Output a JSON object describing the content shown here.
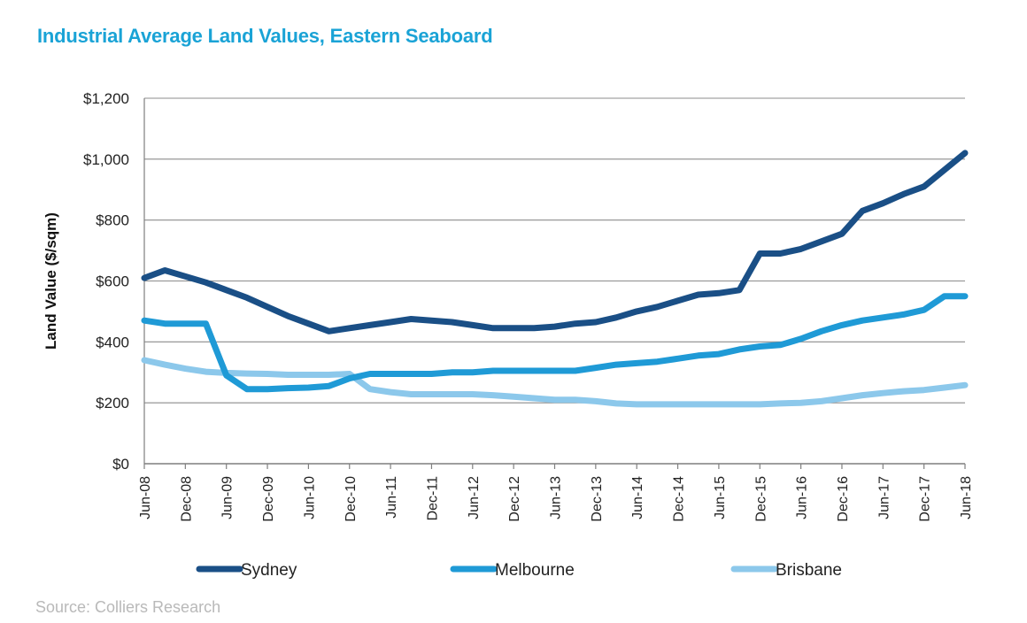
{
  "chart_data": {
    "type": "line",
    "title": "Industrial Average Land Values, Eastern Seaboard",
    "ylabel": "Land Value ($/sqm)",
    "xlabel": "",
    "ylim": [
      0,
      1200
    ],
    "yticks": [
      0,
      200,
      400,
      600,
      800,
      1000,
      1200
    ],
    "ytick_labels": [
      "$0",
      "$200",
      "$400",
      "$600",
      "$800",
      "$1,000",
      "$1,200"
    ],
    "xtick_labels": [
      "Jun-08",
      "Dec-08",
      "Jun-09",
      "Dec-09",
      "Jun-10",
      "Dec-10",
      "Jun-11",
      "Dec-11",
      "Jun-12",
      "Dec-12",
      "Jun-13",
      "Dec-13",
      "Jun-14",
      "Dec-14",
      "Jun-15",
      "Dec-15",
      "Jun-16",
      "Dec-16",
      "Jun-17",
      "Dec-17",
      "Jun-18"
    ],
    "x": [
      "Jun-08",
      "Sep-08",
      "Dec-08",
      "Mar-09",
      "Jun-09",
      "Sep-09",
      "Dec-09",
      "Mar-10",
      "Jun-10",
      "Sep-10",
      "Dec-10",
      "Mar-11",
      "Jun-11",
      "Sep-11",
      "Dec-11",
      "Mar-12",
      "Jun-12",
      "Sep-12",
      "Dec-12",
      "Mar-13",
      "Jun-13",
      "Sep-13",
      "Dec-13",
      "Mar-14",
      "Jun-14",
      "Sep-14",
      "Dec-14",
      "Mar-15",
      "Jun-15",
      "Sep-15",
      "Dec-15",
      "Mar-16",
      "Jun-16",
      "Sep-16",
      "Dec-16",
      "Mar-17",
      "Jun-17",
      "Sep-17",
      "Dec-17",
      "Mar-18",
      "Jun-18"
    ],
    "grid": true,
    "legend_position": "bottom",
    "series": [
      {
        "name": "Sydney",
        "color": "#1a4f86",
        "values": [
          610,
          635,
          615,
          595,
          570,
          545,
          515,
          485,
          460,
          435,
          445,
          455,
          465,
          475,
          470,
          465,
          455,
          445,
          445,
          445,
          450,
          460,
          465,
          480,
          500,
          515,
          535,
          555,
          560,
          570,
          690,
          690,
          705,
          730,
          755,
          830,
          855,
          885,
          910,
          965,
          1020
        ]
      },
      {
        "name": "Melbourne",
        "color": "#1f9ad6",
        "values": [
          470,
          460,
          460,
          460,
          290,
          245,
          245,
          248,
          250,
          255,
          280,
          295,
          295,
          295,
          295,
          300,
          300,
          305,
          305,
          305,
          305,
          305,
          315,
          325,
          330,
          335,
          345,
          355,
          360,
          375,
          385,
          390,
          410,
          435,
          455,
          470,
          480,
          490,
          505,
          550,
          550
        ]
      },
      {
        "name": "Brisbane",
        "color": "#8cc8eb",
        "values": [
          340,
          325,
          312,
          302,
          298,
          296,
          295,
          292,
          292,
          292,
          295,
          245,
          235,
          228,
          228,
          228,
          228,
          225,
          220,
          215,
          210,
          210,
          205,
          198,
          195,
          195,
          195,
          195,
          195,
          195,
          195,
          198,
          200,
          205,
          215,
          225,
          232,
          238,
          242,
          250,
          258
        ]
      }
    ]
  },
  "source": "Source: Colliers Research"
}
